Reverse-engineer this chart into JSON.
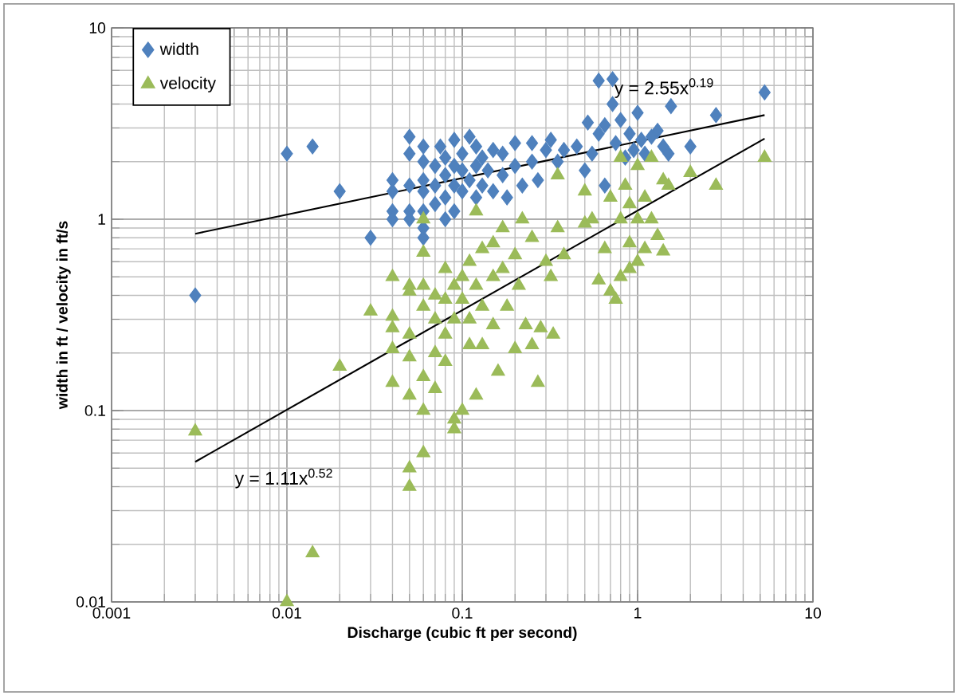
{
  "chart_data": {
    "type": "scatter",
    "xlabel": "Discharge (cubic ft per second)",
    "ylabel": "width  in ft / velocity in ft/s",
    "log": "xy",
    "xlim": [
      0.001,
      10
    ],
    "ylim": [
      0.01,
      10
    ],
    "xticks": [
      0.001,
      0.01,
      0.1,
      1,
      10
    ],
    "yticks": [
      0.01,
      0.1,
      1,
      10
    ],
    "grid": true,
    "legend": "top left",
    "series": [
      {
        "name": "width",
        "color": "#4f81bd",
        "marker": "diamond",
        "x": [
          0.003,
          0.01,
          0.014,
          0.02,
          0.03,
          0.04,
          0.04,
          0.04,
          0.04,
          0.05,
          0.05,
          0.05,
          0.05,
          0.05,
          0.06,
          0.06,
          0.06,
          0.06,
          0.06,
          0.06,
          0.06,
          0.07,
          0.07,
          0.07,
          0.075,
          0.08,
          0.08,
          0.08,
          0.08,
          0.09,
          0.09,
          0.09,
          0.09,
          0.1,
          0.1,
          0.1,
          0.11,
          0.11,
          0.12,
          0.12,
          0.12,
          0.13,
          0.13,
          0.14,
          0.15,
          0.15,
          0.17,
          0.17,
          0.18,
          0.2,
          0.2,
          0.22,
          0.25,
          0.25,
          0.27,
          0.3,
          0.32,
          0.35,
          0.38,
          0.45,
          0.5,
          0.52,
          0.55,
          0.6,
          0.6,
          0.65,
          0.65,
          0.72,
          0.72,
          0.75,
          0.8,
          0.85,
          0.9,
          0.95,
          1.0,
          1.05,
          1.1,
          1.2,
          1.3,
          1.4,
          1.5,
          1.55,
          2.0,
          2.8,
          5.3
        ],
        "values": [
          0.4,
          2.2,
          2.4,
          1.4,
          0.8,
          1.6,
          1.4,
          1.1,
          1.0,
          2.7,
          2.2,
          1.5,
          1.1,
          1.0,
          2.4,
          2.0,
          1.6,
          1.4,
          1.1,
          0.9,
          0.8,
          1.9,
          1.5,
          1.2,
          2.4,
          2.1,
          1.7,
          1.3,
          1.0,
          2.6,
          1.9,
          1.5,
          1.1,
          2.2,
          1.8,
          1.4,
          2.7,
          1.6,
          2.4,
          1.9,
          1.3,
          2.1,
          1.5,
          1.8,
          2.3,
          1.4,
          2.2,
          1.7,
          1.3,
          2.5,
          1.9,
          1.5,
          2.5,
          2.0,
          1.6,
          2.3,
          2.6,
          2.0,
          2.3,
          2.4,
          1.8,
          3.2,
          2.2,
          5.3,
          2.8,
          3.1,
          1.5,
          5.4,
          4.0,
          2.5,
          3.3,
          2.1,
          2.8,
          2.3,
          3.6,
          2.6,
          2.2,
          2.7,
          2.9,
          2.4,
          2.2,
          3.9,
          2.4,
          3.5,
          4.6
        ]
      },
      {
        "name": "velocity",
        "color": "#9bbb59",
        "marker": "triangle",
        "x": [
          0.003,
          0.01,
          0.014,
          0.02,
          0.03,
          0.04,
          0.04,
          0.04,
          0.04,
          0.04,
          0.05,
          0.05,
          0.05,
          0.05,
          0.05,
          0.05,
          0.05,
          0.06,
          0.06,
          0.06,
          0.06,
          0.06,
          0.06,
          0.06,
          0.07,
          0.07,
          0.07,
          0.07,
          0.08,
          0.08,
          0.08,
          0.08,
          0.09,
          0.09,
          0.09,
          0.09,
          0.1,
          0.1,
          0.1,
          0.11,
          0.11,
          0.11,
          0.12,
          0.12,
          0.12,
          0.13,
          0.13,
          0.13,
          0.15,
          0.15,
          0.15,
          0.16,
          0.17,
          0.17,
          0.18,
          0.2,
          0.2,
          0.21,
          0.22,
          0.23,
          0.25,
          0.25,
          0.27,
          0.28,
          0.3,
          0.32,
          0.33,
          0.35,
          0.35,
          0.38,
          0.5,
          0.5,
          0.55,
          0.6,
          0.65,
          0.7,
          0.7,
          0.75,
          0.8,
          0.8,
          0.8,
          0.85,
          0.9,
          0.9,
          0.9,
          1.0,
          1.0,
          1.0,
          1.1,
          1.1,
          1.2,
          1.2,
          1.3,
          1.4,
          1.4,
          1.5,
          2.0,
          2.8,
          5.3
        ],
        "values": [
          0.078,
          0.01,
          0.018,
          0.17,
          0.33,
          0.5,
          0.31,
          0.27,
          0.21,
          0.14,
          0.45,
          0.42,
          0.25,
          0.19,
          0.12,
          0.05,
          0.04,
          1.0,
          0.67,
          0.45,
          0.35,
          0.15,
          0.1,
          0.06,
          0.4,
          0.3,
          0.2,
          0.13,
          0.55,
          0.38,
          0.25,
          0.18,
          0.45,
          0.3,
          0.09,
          0.08,
          0.5,
          0.38,
          0.1,
          0.6,
          0.3,
          0.22,
          1.1,
          0.45,
          0.12,
          0.7,
          0.35,
          0.22,
          0.75,
          0.5,
          0.28,
          0.16,
          0.9,
          0.55,
          0.35,
          0.65,
          0.21,
          0.45,
          1.0,
          0.28,
          0.8,
          0.22,
          0.14,
          0.27,
          0.6,
          0.5,
          0.25,
          1.7,
          0.9,
          0.65,
          1.4,
          0.95,
          1.0,
          0.48,
          0.7,
          1.3,
          0.42,
          0.38,
          2.1,
          1.0,
          0.5,
          1.5,
          1.2,
          0.75,
          0.55,
          1.9,
          1.0,
          0.6,
          1.3,
          0.7,
          2.1,
          1.0,
          0.82,
          1.6,
          0.68,
          1.5,
          1.75,
          1.5,
          2.1
        ]
      },
      {
        "type": "line",
        "color": "#000000",
        "marker": "none",
        "line_style": "solid",
        "x": [
          0.003,
          5.3
        ],
        "values": [
          0.84,
          3.5
        ]
      },
      {
        "type": "line",
        "color": "#000000",
        "marker": "none",
        "line_style": "solid",
        "x": [
          0.003,
          5.3
        ],
        "values": [
          0.054,
          2.64
        ]
      }
    ],
    "annotations": [
      "y = 2.55x$^{0.19}$",
      "y = 1.11x$^{0.52}$"
    ]
  }
}
